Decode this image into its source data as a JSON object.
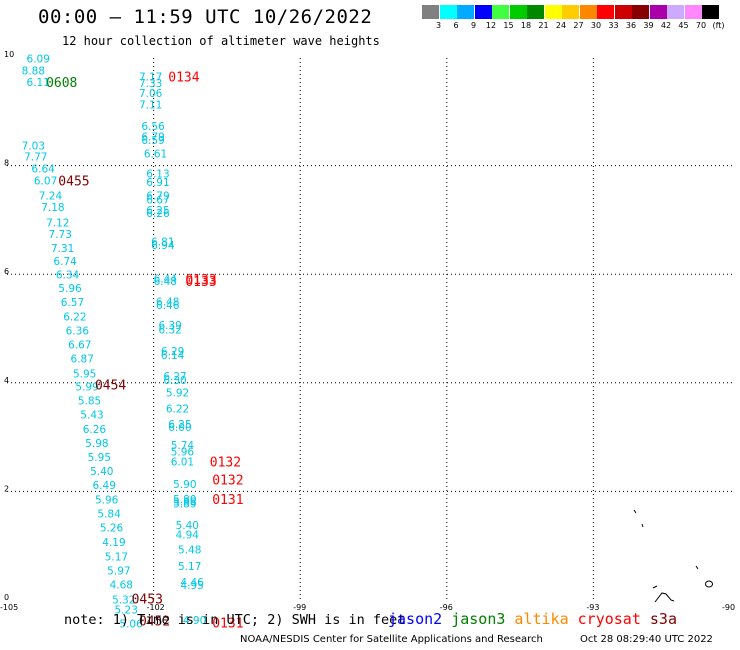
{
  "header": {
    "title": "00:00 – 11:59 UTC 10/26/2022",
    "subtitle": "12 hour collection of altimeter wave heights"
  },
  "legend": {
    "colors": [
      "#808080",
      "#00ffff",
      "#00aaff",
      "#0000ff",
      "#40ff40",
      "#00cc00",
      "#008800",
      "#ffff00",
      "#ffcc00",
      "#ff8800",
      "#ff0000",
      "#cc0000",
      "#880000",
      "#aa00aa",
      "#ccaaff",
      "#ff88ff",
      "#000000"
    ],
    "labels": [
      "3",
      "6",
      "9",
      "12",
      "15",
      "18",
      "21",
      "24",
      "27",
      "30",
      "33",
      "36",
      "39",
      "42",
      "45",
      "70",
      "(ft)"
    ]
  },
  "axes": {
    "x_ticks": [
      "-105",
      "-102",
      "-99",
      "-96",
      "-93",
      "-90"
    ],
    "y_ticks": [
      "0",
      "2",
      "4",
      "6",
      "8",
      "10"
    ]
  },
  "colors": {
    "cyan": "#00c8e8",
    "green": "#008000",
    "red": "#ff0000",
    "darkred": "#800000"
  },
  "observations": {
    "track_west": [
      {
        "lon": -104.6,
        "lat": 9.9,
        "v": "6.09"
      },
      {
        "lon": -104.7,
        "lat": 9.68,
        "v": "8.88"
      },
      {
        "lon": -104.6,
        "lat": 9.47,
        "v": "6.11"
      },
      {
        "lon": -104.7,
        "lat": 8.3,
        "v": "7.03"
      },
      {
        "lon": -104.65,
        "lat": 8.09,
        "v": "7.77"
      },
      {
        "lon": -104.5,
        "lat": 7.87,
        "v": "6.64"
      },
      {
        "lon": -104.45,
        "lat": 7.65,
        "v": "6.07"
      },
      {
        "lon": -104.35,
        "lat": 7.38,
        "v": "7.24"
      },
      {
        "lon": -104.3,
        "lat": 7.16,
        "v": "7.18"
      },
      {
        "lon": -104.2,
        "lat": 6.88,
        "v": "7.12"
      },
      {
        "lon": -104.15,
        "lat": 6.67,
        "v": "7.73"
      },
      {
        "lon": -104.1,
        "lat": 6.41,
        "v": "7.31"
      },
      {
        "lon": -104.05,
        "lat": 6.17,
        "v": "6.74"
      },
      {
        "lon": -104.0,
        "lat": 5.92,
        "v": "6.34"
      },
      {
        "lon": -103.95,
        "lat": 5.67,
        "v": "5.96"
      },
      {
        "lon": -103.9,
        "lat": 5.41,
        "v": "6.57"
      },
      {
        "lon": -103.85,
        "lat": 5.15,
        "v": "6.22"
      },
      {
        "lon": -103.8,
        "lat": 4.89,
        "v": "6.36"
      },
      {
        "lon": -103.75,
        "lat": 4.63,
        "v": "6.67"
      },
      {
        "lon": -103.7,
        "lat": 4.37,
        "v": "6.87"
      },
      {
        "lon": -103.65,
        "lat": 4.1,
        "v": "5.95"
      },
      {
        "lon": -103.6,
        "lat": 3.86,
        "v": "5.99"
      },
      {
        "lon": -103.55,
        "lat": 3.6,
        "v": "5.85"
      },
      {
        "lon": -103.5,
        "lat": 3.34,
        "v": "5.43"
      },
      {
        "lon": -103.45,
        "lat": 3.08,
        "v": "6.26"
      },
      {
        "lon": -103.4,
        "lat": 2.82,
        "v": "5.98"
      },
      {
        "lon": -103.35,
        "lat": 2.56,
        "v": "5.95"
      },
      {
        "lon": -103.3,
        "lat": 2.3,
        "v": "5.40"
      },
      {
        "lon": -103.25,
        "lat": 2.04,
        "v": "6.49"
      },
      {
        "lon": -103.2,
        "lat": 1.78,
        "v": "5.96"
      },
      {
        "lon": -103.15,
        "lat": 1.52,
        "v": "5.84"
      },
      {
        "lon": -103.1,
        "lat": 1.26,
        "v": "5.26"
      },
      {
        "lon": -103.05,
        "lat": 0.99,
        "v": "4.19"
      },
      {
        "lon": -103.0,
        "lat": 0.73,
        "v": "5.17"
      },
      {
        "lon": -102.95,
        "lat": 0.47,
        "v": "5.97"
      },
      {
        "lon": -102.9,
        "lat": 0.21,
        "v": "4.68"
      },
      {
        "lon": -102.85,
        "lat": -0.06,
        "v": "5.32"
      },
      {
        "lon": -102.8,
        "lat": -0.25,
        "v": "5.23"
      },
      {
        "lon": -102.7,
        "lat": -0.51,
        "v": "5.06"
      }
    ],
    "track_east": [
      {
        "lon": -102.3,
        "lat": 9.57,
        "v": "7.17"
      },
      {
        "lon": -102.3,
        "lat": 9.45,
        "v": "7.33"
      },
      {
        "lon": -102.3,
        "lat": 9.26,
        "v": "7.06"
      },
      {
        "lon": -102.3,
        "lat": 9.05,
        "v": "7.11"
      },
      {
        "lon": -102.25,
        "lat": 8.66,
        "v": "6.56"
      },
      {
        "lon": -102.25,
        "lat": 8.46,
        "v": "6.79"
      },
      {
        "lon": -102.25,
        "lat": 8.4,
        "v": "6.59"
      },
      {
        "lon": -102.2,
        "lat": 8.15,
        "v": "6.61"
      },
      {
        "lon": -102.15,
        "lat": 7.78,
        "v": "6.13"
      },
      {
        "lon": -102.15,
        "lat": 7.62,
        "v": "6.91"
      },
      {
        "lon": -102.15,
        "lat": 7.38,
        "v": "6.79"
      },
      {
        "lon": -102.15,
        "lat": 7.3,
        "v": "6.67"
      },
      {
        "lon": -102.15,
        "lat": 7.11,
        "v": "6.25"
      },
      {
        "lon": -102.15,
        "lat": 7.05,
        "v": "6.26"
      },
      {
        "lon": -102.05,
        "lat": 6.53,
        "v": "6.81"
      },
      {
        "lon": -102.05,
        "lat": 6.46,
        "v": "6.94"
      },
      {
        "lon": -102.0,
        "lat": 5.85,
        "v": "6.44"
      },
      {
        "lon": -102.0,
        "lat": 5.8,
        "v": "6.48"
      },
      {
        "lon": -101.95,
        "lat": 5.42,
        "v": "6.48"
      },
      {
        "lon": -101.95,
        "lat": 5.36,
        "v": "6.46"
      },
      {
        "lon": -101.9,
        "lat": 4.99,
        "v": "6.39"
      },
      {
        "lon": -101.9,
        "lat": 4.91,
        "v": "6.32"
      },
      {
        "lon": -101.85,
        "lat": 4.51,
        "v": "6.29"
      },
      {
        "lon": -101.85,
        "lat": 4.44,
        "v": "6.14"
      },
      {
        "lon": -101.8,
        "lat": 4.05,
        "v": "6.27"
      },
      {
        "lon": -101.8,
        "lat": 3.98,
        "v": "6.30"
      },
      {
        "lon": -101.75,
        "lat": 3.75,
        "v": "5.92"
      },
      {
        "lon": -101.75,
        "lat": 3.45,
        "v": "6.22"
      },
      {
        "lon": -101.7,
        "lat": 3.17,
        "v": "6.25"
      },
      {
        "lon": -101.7,
        "lat": 3.11,
        "v": "6.00"
      },
      {
        "lon": -101.65,
        "lat": 2.78,
        "v": "5.74"
      },
      {
        "lon": -101.65,
        "lat": 2.66,
        "v": "5.96"
      },
      {
        "lon": -101.65,
        "lat": 2.48,
        "v": "6.01"
      },
      {
        "lon": -101.6,
        "lat": 2.06,
        "v": "5.90"
      },
      {
        "lon": -101.6,
        "lat": 1.79,
        "v": "5.80"
      },
      {
        "lon": -101.6,
        "lat": 1.74,
        "v": "5.88"
      },
      {
        "lon": -101.6,
        "lat": 1.7,
        "v": "5.89"
      },
      {
        "lon": -101.55,
        "lat": 1.31,
        "v": "5.40"
      },
      {
        "lon": -101.55,
        "lat": 1.13,
        "v": "4.94"
      },
      {
        "lon": -101.5,
        "lat": 0.86,
        "v": "5.48"
      },
      {
        "lon": -101.5,
        "lat": 0.55,
        "v": "5.17"
      },
      {
        "lon": -101.45,
        "lat": 0.26,
        "v": "4.46"
      },
      {
        "lon": -101.45,
        "lat": 0.2,
        "v": "4.95"
      },
      {
        "lon": -101.4,
        "lat": -0.44,
        "v": "4.90"
      }
    ],
    "times": [
      {
        "lon": -104.2,
        "lat": 9.45,
        "t": "0608",
        "color": "#008000"
      },
      {
        "lon": -101.7,
        "lat": 9.55,
        "t": "0134",
        "color": "#ff0000"
      },
      {
        "lon": -103.95,
        "lat": 7.63,
        "t": "0455",
        "color": "#800000"
      },
      {
        "lon": -101.35,
        "lat": 5.82,
        "t": "0133",
        "color": "#ff0000"
      },
      {
        "lon": -101.35,
        "lat": 5.78,
        "t": "0133",
        "color": "#ff0000"
      },
      {
        "lon": -103.2,
        "lat": 3.88,
        "t": "0454",
        "color": "#800000"
      },
      {
        "lon": -100.85,
        "lat": 2.46,
        "t": "0132",
        "color": "#ff0000"
      },
      {
        "lon": -100.8,
        "lat": 2.13,
        "t": "0132",
        "color": "#ff0000"
      },
      {
        "lon": -100.8,
        "lat": 1.77,
        "t": "0131",
        "color": "#ff0000"
      },
      {
        "lon": -102.45,
        "lat": -0.06,
        "t": "0453",
        "color": "#800000"
      },
      {
        "lon": -102.3,
        "lat": -0.47,
        "t": "0452",
        "color": "#800000"
      },
      {
        "lon": -100.8,
        "lat": -0.51,
        "t": "0131",
        "color": "#ff0000"
      }
    ]
  },
  "note": "note: 1) Time is in UTC; 2) SWH is in feet",
  "satellites": [
    {
      "name": "jason2",
      "color": "#0000ff"
    },
    {
      "name": "jason3",
      "color": "#008000"
    },
    {
      "name": "altika",
      "color": "#ff8800"
    },
    {
      "name": "cryosat",
      "color": "#ff0000"
    },
    {
      "name": "s3a",
      "color": "#800000"
    }
  ],
  "footer": {
    "agency": "NOAA/NESDIS Center for Satellite Applications and Research",
    "timestamp": "Oct 28 08:29:40 UTC 2022"
  }
}
